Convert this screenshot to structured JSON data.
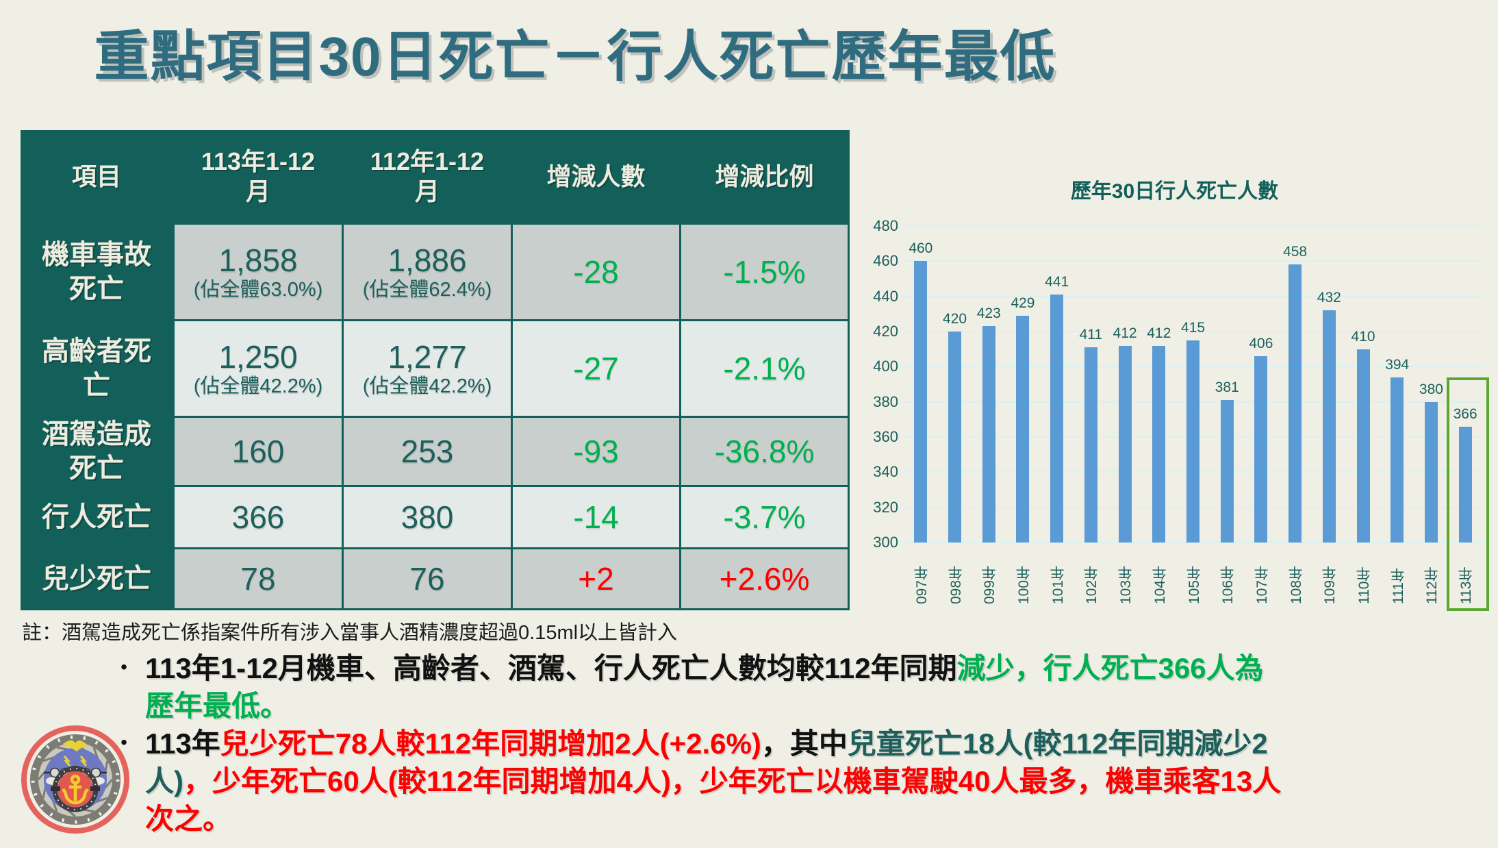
{
  "title": "重點項目30日死亡－行人死亡歷年最低",
  "colors": {
    "background": "#efefe6",
    "title": "#2f6c80",
    "teal_dark": "#13605a",
    "header_text": "#efecdf",
    "cell_gray": "#c9cfcc",
    "cell_light": "#e4eae8",
    "value_teal": "#1c5f5b",
    "green": "#00b050",
    "red": "#fe0000",
    "bar_blue": "#5b9bd5",
    "gridline": "#d9f1f1",
    "highlight_green": "#5aa82f"
  },
  "table": {
    "headers": [
      "項目",
      "113年1-12月",
      "112年1-12月",
      "增減人數",
      "增減比例"
    ],
    "rows": [
      {
        "label": "機車事故死亡",
        "v113": "1,858",
        "v113_sub": "(佔全體63.0%)",
        "v112": "1,886",
        "v112_sub": "(佔全體62.4%)",
        "diff": "-28",
        "pct": "-1.5%",
        "trend": "down"
      },
      {
        "label": "高齡者死亡",
        "v113": "1,250",
        "v113_sub": "(佔全體42.2%)",
        "v112": "1,277",
        "v112_sub": "(佔全體42.2%)",
        "diff": "-27",
        "pct": "-2.1%",
        "trend": "down"
      },
      {
        "label": "酒駕造成死亡",
        "v113": "160",
        "v112": "253",
        "diff": "-93",
        "pct": "-36.8%",
        "trend": "down"
      },
      {
        "label": "行人死亡",
        "v113": "366",
        "v112": "380",
        "diff": "-14",
        "pct": "-3.7%",
        "trend": "down"
      },
      {
        "label": "兒少死亡",
        "v113": "78",
        "v112": "76",
        "diff": "+2",
        "pct": "+2.6%",
        "trend": "up"
      }
    ]
  },
  "chart_data": {
    "type": "bar",
    "title": "歷年30日行人死亡人數",
    "categories": [
      "097年",
      "098年",
      "099年",
      "100年",
      "101年",
      "102年",
      "103年",
      "104年",
      "105年",
      "106年",
      "107年",
      "108年",
      "109年",
      "110年",
      "111年",
      "112年",
      "113年"
    ],
    "values": [
      460,
      420,
      423,
      429,
      441,
      411,
      412,
      412,
      415,
      381,
      406,
      458,
      432,
      410,
      394,
      380,
      366
    ],
    "xlabel": "",
    "ylabel": "",
    "ylim": [
      300,
      480
    ],
    "ytick_step": 20,
    "grid": true,
    "legend": "none",
    "highlight_last": true
  },
  "note": "註：酒駕造成死亡係指案件所有涉入當事人酒精濃度超過0.15ml以上皆計入",
  "bullet_char": "•",
  "bullets": [
    {
      "lines": [
        [
          {
            "text": "113年1-12月機車、高齡者、酒駕、行人死亡人數均較112年同期",
            "color": "black"
          },
          {
            "text": "減少，行人死亡366人為",
            "color": "green"
          }
        ],
        [
          {
            "text": "歷年最低。",
            "color": "green"
          }
        ]
      ]
    },
    {
      "lines": [
        [
          {
            "text": "113年",
            "color": "black"
          },
          {
            "text": "兒少死亡78人較112年同期增加2人(+2.6%)",
            "color": "red"
          },
          {
            "text": "，其中",
            "color": "black"
          },
          {
            "text": "兒童死亡18人(較112年同期減少2",
            "color": "teal"
          }
        ],
        [
          {
            "text": "人)",
            "color": "teal"
          },
          {
            "text": "，少年死亡60人(較112年同期增加4人)，少年死亡以機車駕駛40人最多，機車乘客13人",
            "color": "red"
          }
        ],
        [
          {
            "text": "次之。",
            "color": "red"
          }
        ]
      ]
    }
  ],
  "logo": {
    "name": "交通部 emblem"
  }
}
